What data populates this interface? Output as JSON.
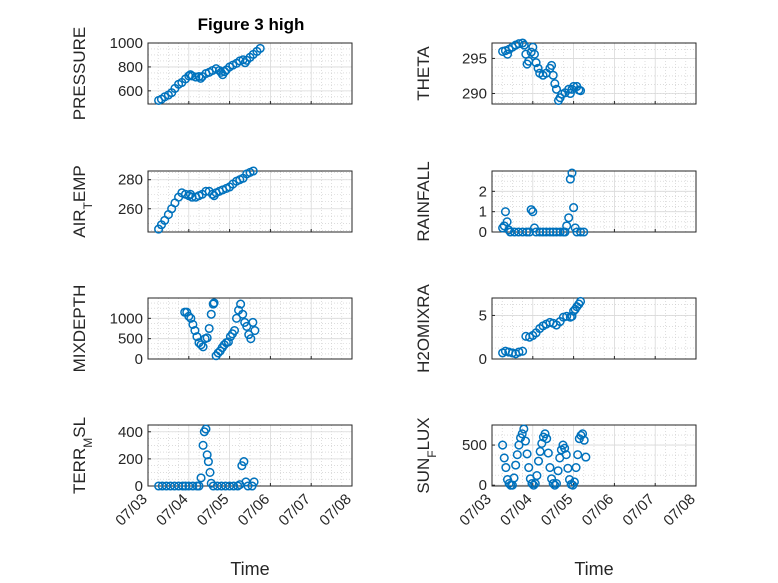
{
  "figure": {
    "title": "Figure 3 high",
    "marker_color": "#0072bd",
    "x_ticks": [
      "07/03",
      "07/04",
      "07/05",
      "07/06",
      "07/07",
      "07/08"
    ]
  },
  "chart_data": [
    {
      "type": "scatter",
      "ylabel": "PRESSURE",
      "title": "Figure 3 high",
      "xlabel": "",
      "xlim": [
        "07/03",
        "07/08"
      ],
      "ylim": [
        490,
        1000
      ],
      "yticks": [
        600,
        800,
        1000
      ],
      "grid": true,
      "points": [
        [
          0.26,
          520
        ],
        [
          0.33,
          530
        ],
        [
          0.41,
          550
        ],
        [
          0.5,
          565
        ],
        [
          0.58,
          585
        ],
        [
          0.66,
          620
        ],
        [
          0.75,
          655
        ],
        [
          0.83,
          670
        ],
        [
          0.92,
          700
        ],
        [
          1.0,
          725
        ],
        [
          1.04,
          735
        ],
        [
          1.08,
          725
        ],
        [
          1.17,
          715
        ],
        [
          1.25,
          720
        ],
        [
          1.29,
          705
        ],
        [
          1.33,
          720
        ],
        [
          1.42,
          745
        ],
        [
          1.5,
          755
        ],
        [
          1.58,
          770
        ],
        [
          1.67,
          785
        ],
        [
          1.75,
          770
        ],
        [
          1.79,
          755
        ],
        [
          1.83,
          735
        ],
        [
          1.88,
          760
        ],
        [
          1.92,
          775
        ],
        [
          2.0,
          800
        ],
        [
          2.08,
          815
        ],
        [
          2.17,
          830
        ],
        [
          2.25,
          850
        ],
        [
          2.33,
          860
        ],
        [
          2.38,
          835
        ],
        [
          2.42,
          855
        ],
        [
          2.5,
          880
        ],
        [
          2.58,
          905
        ],
        [
          2.67,
          930
        ],
        [
          2.75,
          955
        ]
      ]
    },
    {
      "type": "scatter",
      "ylabel": "THETA",
      "xlabel": "",
      "xlim": [
        "07/03",
        "07/08"
      ],
      "ylim": [
        288.5,
        297.2
      ],
      "yticks": [
        290,
        295
      ],
      "grid": true,
      "points": [
        [
          0.26,
          296.0
        ],
        [
          0.33,
          296.1
        ],
        [
          0.38,
          295.6
        ],
        [
          0.42,
          296.3
        ],
        [
          0.5,
          296.6
        ],
        [
          0.58,
          296.9
        ],
        [
          0.66,
          297.1
        ],
        [
          0.75,
          297.2
        ],
        [
          0.79,
          296.9
        ],
        [
          0.83,
          295.6
        ],
        [
          0.86,
          294.2
        ],
        [
          0.9,
          294.6
        ],
        [
          0.96,
          295.9
        ],
        [
          1.0,
          296.6
        ],
        [
          1.04,
          295.6
        ],
        [
          1.08,
          294.4
        ],
        [
          1.13,
          293.6
        ],
        [
          1.17,
          292.9
        ],
        [
          1.25,
          292.6
        ],
        [
          1.33,
          292.9
        ],
        [
          1.42,
          293.6
        ],
        [
          1.46,
          294.0
        ],
        [
          1.5,
          292.6
        ],
        [
          1.54,
          291.4
        ],
        [
          1.58,
          290.6
        ],
        [
          1.63,
          289.0
        ],
        [
          1.67,
          289.4
        ],
        [
          1.71,
          289.9
        ],
        [
          1.79,
          290.1
        ],
        [
          1.88,
          290.6
        ],
        [
          1.92,
          290.0
        ],
        [
          1.96,
          290.6
        ],
        [
          2.0,
          291.0
        ],
        [
          2.08,
          291.0
        ],
        [
          2.13,
          290.5
        ],
        [
          2.17,
          290.4
        ]
      ]
    },
    {
      "type": "scatter",
      "ylabel": "AIR_TEMP",
      "xlabel": "",
      "xlim": [
        "07/03",
        "07/08"
      ],
      "ylim": [
        244,
        286
      ],
      "yticks": [
        260,
        280
      ],
      "grid": true,
      "points": [
        [
          0.26,
          246
        ],
        [
          0.33,
          249
        ],
        [
          0.41,
          252
        ],
        [
          0.5,
          256
        ],
        [
          0.58,
          260
        ],
        [
          0.66,
          264
        ],
        [
          0.75,
          268
        ],
        [
          0.83,
          271
        ],
        [
          0.92,
          270
        ],
        [
          1.0,
          269
        ],
        [
          1.04,
          270
        ],
        [
          1.08,
          268
        ],
        [
          1.17,
          268
        ],
        [
          1.25,
          269
        ],
        [
          1.33,
          270
        ],
        [
          1.42,
          272
        ],
        [
          1.5,
          272
        ],
        [
          1.58,
          270
        ],
        [
          1.62,
          269
        ],
        [
          1.67,
          271
        ],
        [
          1.75,
          272
        ],
        [
          1.83,
          273
        ],
        [
          1.92,
          274
        ],
        [
          2.0,
          275
        ],
        [
          2.08,
          277
        ],
        [
          2.17,
          279
        ],
        [
          2.25,
          280
        ],
        [
          2.33,
          281
        ],
        [
          2.42,
          284
        ],
        [
          2.5,
          285
        ],
        [
          2.58,
          286
        ]
      ]
    },
    {
      "type": "scatter",
      "ylabel": "RAINFALL",
      "xlabel": "",
      "xlim": [
        "07/03",
        "07/08"
      ],
      "ylim": [
        0,
        3
      ],
      "yticks": [
        0,
        1,
        2
      ],
      "grid": true,
      "points": [
        [
          0.26,
          0.2
        ],
        [
          0.3,
          0.3
        ],
        [
          0.33,
          1.0
        ],
        [
          0.37,
          0.5
        ],
        [
          0.41,
          0.1
        ],
        [
          0.45,
          0.0
        ],
        [
          0.55,
          0.0
        ],
        [
          0.65,
          0.0
        ],
        [
          0.75,
          0.0
        ],
        [
          0.85,
          0.0
        ],
        [
          0.92,
          0.0
        ],
        [
          0.96,
          1.1
        ],
        [
          1.0,
          1.0
        ],
        [
          1.04,
          0.2
        ],
        [
          1.08,
          0.0
        ],
        [
          1.17,
          0.0
        ],
        [
          1.25,
          0.0
        ],
        [
          1.33,
          0.0
        ],
        [
          1.42,
          0.0
        ],
        [
          1.5,
          0.0
        ],
        [
          1.58,
          0.0
        ],
        [
          1.67,
          0.0
        ],
        [
          1.75,
          0.0
        ],
        [
          1.79,
          0.0
        ],
        [
          1.83,
          0.3
        ],
        [
          1.88,
          0.7
        ],
        [
          1.92,
          2.6
        ],
        [
          1.96,
          2.9
        ],
        [
          2.0,
          1.2
        ],
        [
          2.04,
          0.2
        ],
        [
          2.08,
          0.0
        ],
        [
          2.17,
          0.0
        ],
        [
          2.25,
          0.0
        ]
      ]
    },
    {
      "type": "scatter",
      "ylabel": "MIXDEPTH",
      "xlabel": "",
      "xlim": [
        "07/03",
        "07/08"
      ],
      "ylim": [
        0,
        1500
      ],
      "yticks": [
        0,
        500,
        1000
      ],
      "grid": true,
      "points": [
        [
          0.9,
          1150
        ],
        [
          0.95,
          1150
        ],
        [
          1.0,
          1050
        ],
        [
          1.05,
          1000
        ],
        [
          1.1,
          850
        ],
        [
          1.15,
          700
        ],
        [
          1.2,
          550
        ],
        [
          1.25,
          400
        ],
        [
          1.3,
          350
        ],
        [
          1.35,
          300
        ],
        [
          1.4,
          500
        ],
        [
          1.45,
          520
        ],
        [
          1.5,
          750
        ],
        [
          1.55,
          1100
        ],
        [
          1.6,
          1350
        ],
        [
          1.62,
          1380
        ],
        [
          1.67,
          80
        ],
        [
          1.72,
          150
        ],
        [
          1.77,
          200
        ],
        [
          1.82,
          280
        ],
        [
          1.87,
          350
        ],
        [
          1.92,
          400
        ],
        [
          1.97,
          420
        ],
        [
          2.02,
          550
        ],
        [
          2.07,
          620
        ],
        [
          2.12,
          700
        ],
        [
          2.17,
          1000
        ],
        [
          2.22,
          1200
        ],
        [
          2.27,
          1350
        ],
        [
          2.32,
          1100
        ],
        [
          2.37,
          900
        ],
        [
          2.42,
          800
        ],
        [
          2.47,
          600
        ],
        [
          2.52,
          500
        ],
        [
          2.57,
          900
        ],
        [
          2.62,
          700
        ]
      ]
    },
    {
      "type": "scatter",
      "ylabel": "H2OMIXRA",
      "xlabel": "",
      "xlim": [
        "07/03",
        "07/08"
      ],
      "ylim": [
        0,
        7
      ],
      "yticks": [
        0,
        5
      ],
      "grid": true,
      "points": [
        [
          0.26,
          0.7
        ],
        [
          0.33,
          0.9
        ],
        [
          0.41,
          0.8
        ],
        [
          0.5,
          0.7
        ],
        [
          0.58,
          0.6
        ],
        [
          0.66,
          0.8
        ],
        [
          0.75,
          0.9
        ],
        [
          0.83,
          2.6
        ],
        [
          0.92,
          2.5
        ],
        [
          1.0,
          2.7
        ],
        [
          1.08,
          3.0
        ],
        [
          1.17,
          3.5
        ],
        [
          1.25,
          3.8
        ],
        [
          1.33,
          4.0
        ],
        [
          1.42,
          4.2
        ],
        [
          1.5,
          4.1
        ],
        [
          1.58,
          3.9
        ],
        [
          1.67,
          4.3
        ],
        [
          1.75,
          4.8
        ],
        [
          1.83,
          4.9
        ],
        [
          1.92,
          4.8
        ],
        [
          1.96,
          4.9
        ],
        [
          2.0,
          5.5
        ],
        [
          2.04,
          5.7
        ],
        [
          2.08,
          6.0
        ],
        [
          2.13,
          6.3
        ],
        [
          2.17,
          6.6
        ]
      ]
    },
    {
      "type": "scatter",
      "ylabel": "TERR_MSL",
      "xlabel": "Time",
      "xlim": [
        "07/03",
        "07/08"
      ],
      "ylim": [
        0,
        450
      ],
      "yticks": [
        0,
        200,
        400
      ],
      "grid": true,
      "points": [
        [
          0.26,
          0
        ],
        [
          0.35,
          0
        ],
        [
          0.45,
          0
        ],
        [
          0.55,
          0
        ],
        [
          0.65,
          0
        ],
        [
          0.75,
          0
        ],
        [
          0.85,
          0
        ],
        [
          0.92,
          0
        ],
        [
          1.0,
          0
        ],
        [
          1.1,
          0
        ],
        [
          1.2,
          0
        ],
        [
          1.25,
          0
        ],
        [
          1.3,
          60
        ],
        [
          1.35,
          300
        ],
        [
          1.38,
          400
        ],
        [
          1.42,
          420
        ],
        [
          1.45,
          230
        ],
        [
          1.48,
          180
        ],
        [
          1.52,
          100
        ],
        [
          1.55,
          20
        ],
        [
          1.6,
          0
        ],
        [
          1.7,
          0
        ],
        [
          1.8,
          0
        ],
        [
          1.9,
          0
        ],
        [
          2.0,
          0
        ],
        [
          2.1,
          0
        ],
        [
          2.2,
          0
        ],
        [
          2.25,
          10
        ],
        [
          2.3,
          150
        ],
        [
          2.35,
          180
        ],
        [
          2.4,
          30
        ],
        [
          2.45,
          0
        ],
        [
          2.55,
          0
        ],
        [
          2.6,
          30
        ]
      ]
    },
    {
      "type": "scatter",
      "ylabel": "SUN_FLUX",
      "xlabel": "Time",
      "xlim": [
        "07/03",
        "07/08"
      ],
      "ylim": [
        -10,
        750
      ],
      "yticks": [
        0,
        500
      ],
      "grid": true,
      "points": [
        [
          0.26,
          500
        ],
        [
          0.3,
          340
        ],
        [
          0.34,
          220
        ],
        [
          0.38,
          70
        ],
        [
          0.42,
          20
        ],
        [
          0.46,
          0
        ],
        [
          0.5,
          0
        ],
        [
          0.54,
          90
        ],
        [
          0.58,
          250
        ],
        [
          0.62,
          380
        ],
        [
          0.66,
          500
        ],
        [
          0.7,
          590
        ],
        [
          0.74,
          640
        ],
        [
          0.78,
          700
        ],
        [
          0.82,
          550
        ],
        [
          0.86,
          390
        ],
        [
          0.9,
          220
        ],
        [
          0.94,
          80
        ],
        [
          0.98,
          20
        ],
        [
          1.02,
          0
        ],
        [
          1.06,
          20
        ],
        [
          1.1,
          120
        ],
        [
          1.14,
          300
        ],
        [
          1.18,
          420
        ],
        [
          1.22,
          520
        ],
        [
          1.26,
          600
        ],
        [
          1.3,
          640
        ],
        [
          1.34,
          580
        ],
        [
          1.38,
          400
        ],
        [
          1.42,
          220
        ],
        [
          1.46,
          80
        ],
        [
          1.5,
          20
        ],
        [
          1.54,
          0
        ],
        [
          1.58,
          20
        ],
        [
          1.62,
          180
        ],
        [
          1.66,
          340
        ],
        [
          1.7,
          440
        ],
        [
          1.74,
          500
        ],
        [
          1.78,
          460
        ],
        [
          1.82,
          380
        ],
        [
          1.86,
          210
        ],
        [
          1.9,
          70
        ],
        [
          1.94,
          10
        ],
        [
          1.98,
          0
        ],
        [
          2.02,
          40
        ],
        [
          2.06,
          220
        ],
        [
          2.1,
          380
        ],
        [
          2.14,
          580
        ],
        [
          2.18,
          620
        ],
        [
          2.22,
          640
        ],
        [
          2.26,
          560
        ],
        [
          2.3,
          350
        ]
      ]
    }
  ]
}
